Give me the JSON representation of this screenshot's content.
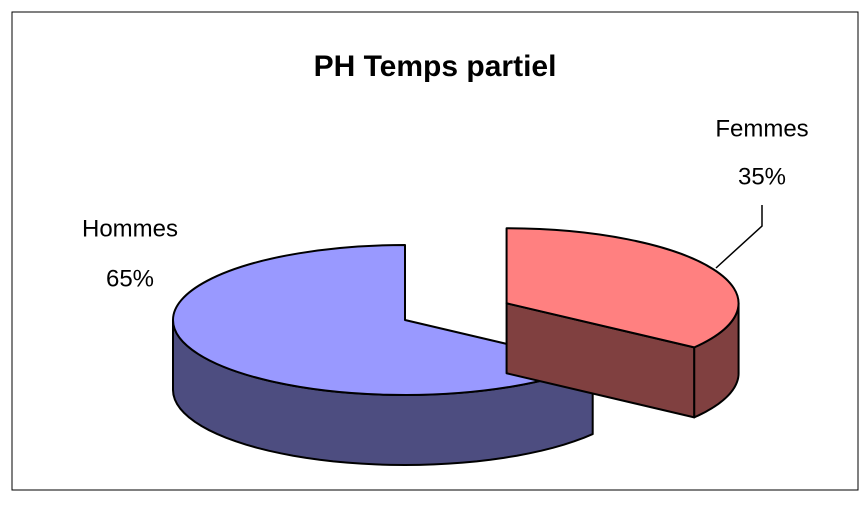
{
  "chart_data": {
    "type": "pie",
    "title": "PH Temps partiel",
    "categories": [
      "Hommes",
      "Femmes"
    ],
    "values": [
      65,
      35
    ],
    "value_labels": [
      "65%",
      "35%"
    ],
    "colors": [
      "#9999ff",
      "#ff8080"
    ],
    "start_slice": 1
  }
}
